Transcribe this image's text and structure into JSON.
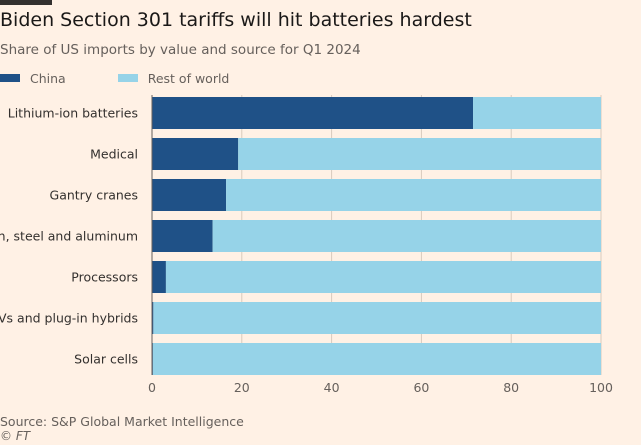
{
  "header": {
    "title": "Biden Section 301 tariffs will hit batteries hardest",
    "subtitle": "Share of US imports by value and source for Q1 2024"
  },
  "footer": {
    "source": "Source: S&P Global Market Intelligence",
    "credit": "© FT"
  },
  "colors": {
    "china": "#1f5187",
    "rest_of_world": "#96d3e8",
    "background": "#fff1e5",
    "gridline": "#d9cbbd"
  },
  "chart_data": {
    "type": "bar",
    "orientation": "horizontal",
    "stacked": true,
    "title": "Biden Section 301 tariffs will hit batteries hardest",
    "subtitle": "Share of US imports by value and source for Q1 2024",
    "categories": [
      "Lithium-ion batteries",
      "Medical",
      "Gantry cranes",
      "Iron, steel and aluminum",
      "Processors",
      "EVs and plug-in hybrids",
      "Solar cells"
    ],
    "series": [
      {
        "name": "China",
        "values": [
          71.5,
          19.2,
          16.5,
          13.5,
          3.1,
          0.3,
          0.2
        ]
      },
      {
        "name": "Rest of world",
        "values": [
          28.5,
          80.8,
          83.5,
          86.5,
          96.9,
          99.7,
          99.8
        ]
      }
    ],
    "xlim": [
      0,
      100
    ],
    "xticks": [
      "0",
      "20",
      "40",
      "60",
      "80",
      "100"
    ],
    "xlabel": "",
    "ylabel": "",
    "grid": true,
    "legend": "top-left"
  }
}
